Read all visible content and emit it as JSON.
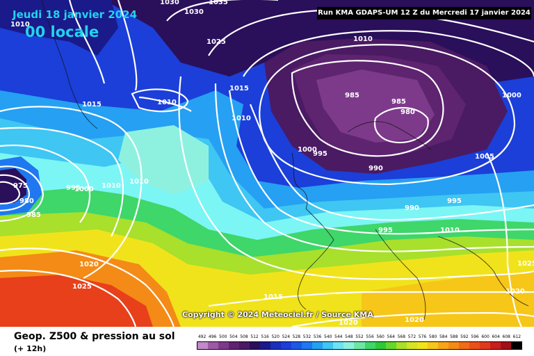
{
  "header": {
    "date": "Jeudi 18 janvier 2024",
    "time": "00 locale",
    "run_info": "Run KMA GDAPS-UM 12 Z du Mercredi 17 janvier 2024"
  },
  "map": {
    "copyright": "Copyright © 2024 Meteociel.fr / Source KMA",
    "pressure_labels": [
      "1030",
      "1035",
      "1030",
      "1025",
      "1010",
      "1015",
      "1010",
      "1015",
      "985",
      "985",
      "980",
      "1000",
      "1010",
      "1005",
      "1000",
      "995",
      "990",
      "975",
      "980",
      "985",
      "995",
      "1000",
      "1010",
      "1010",
      "990",
      "995",
      "995",
      "1010",
      "1020",
      "1025",
      "1015",
      "1020",
      "1020",
      "1020",
      "1025",
      "1010"
    ],
    "colors": {
      "low_center": "#4b0a4e",
      "blue": "#1b3fd8",
      "cyan": "#7cf5f5",
      "green": "#2fd83c",
      "yellow": "#f1e31b",
      "orange": "#f48b16",
      "red": "#e8401b",
      "isobar": "#ffffff"
    }
  },
  "footer": {
    "title": "Geop. Z500 & pression au sol",
    "subtitle": "(+ 12h)",
    "legend_values": [
      "492",
      "496",
      "500",
      "504",
      "508",
      "512",
      "516",
      "520",
      "524",
      "528",
      "532",
      "536",
      "540",
      "544",
      "548",
      "552",
      "556",
      "560",
      "564",
      "568",
      "572",
      "576",
      "580",
      "584",
      "588",
      "592",
      "596",
      "600",
      "604",
      "608",
      "612"
    ],
    "legend_colors": [
      "#c089c8",
      "#9c5aa6",
      "#7d3a8a",
      "#5e2470",
      "#4a1a63",
      "#2a0f5a",
      "#1a1a8a",
      "#1b2fb8",
      "#1b3fd8",
      "#1c58e6",
      "#1f78ef",
      "#26a0f2",
      "#3fc6f2",
      "#6ee2f0",
      "#8ef1e0",
      "#6fe6a4",
      "#3fd66a",
      "#2fc83a",
      "#64d82c",
      "#a8e02c",
      "#d6e426",
      "#f1e31b",
      "#f6c619",
      "#f7a518",
      "#f48b16",
      "#f06c18",
      "#ea501a",
      "#e03a1c",
      "#c8201c",
      "#a0101a",
      "#000000"
    ]
  }
}
